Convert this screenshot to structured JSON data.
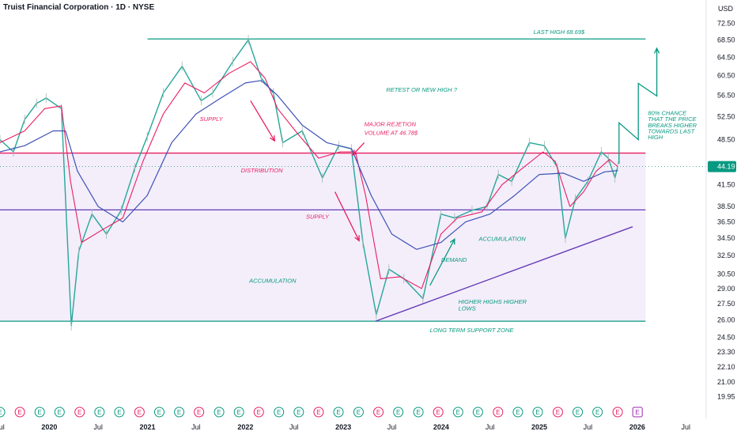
{
  "header": {
    "title": "Truist Financial Corporation · 1D · NYSE",
    "currency": "USD"
  },
  "colors": {
    "green": "#089981",
    "red": "#e91e63",
    "purple": "#673ab7",
    "blue_ma": "#3f51b5",
    "price_line": "#26a69a",
    "zone_fill": "#f3eefa",
    "price_tag": "#089981"
  },
  "chart_data": {
    "type": "line",
    "title": "Truist Financial Corporation · 1D · NYSE",
    "ylabel": "USD",
    "y_scale": "log",
    "ylim": [
      19.5,
      74
    ],
    "x_range": [
      "2019-07-01",
      "2026-09-15"
    ],
    "y_ticks": [
      72.5,
      68.5,
      64.5,
      60.5,
      56.5,
      52.5,
      48.5,
      44.19,
      41.5,
      38.5,
      36.5,
      34.5,
      32.5,
      30.5,
      29.0,
      27.5,
      26.0,
      24.5,
      23.3,
      22.1,
      21.0,
      19.95
    ],
    "x_ticks": [
      {
        "label": "Jul",
        "date": "2019-07-01"
      },
      {
        "label": "2020",
        "date": "2020-01-01"
      },
      {
        "label": "Jul",
        "date": "2020-07-01"
      },
      {
        "label": "2021",
        "date": "2021-01-01"
      },
      {
        "label": "Jul",
        "date": "2021-07-01"
      },
      {
        "label": "2022",
        "date": "2022-01-01"
      },
      {
        "label": "Jul",
        "date": "2022-07-01"
      },
      {
        "label": "2023",
        "date": "2023-01-01"
      },
      {
        "label": "Jul",
        "date": "2023-07-01"
      },
      {
        "label": "2024",
        "date": "2024-01-01"
      },
      {
        "label": "Jul",
        "date": "2024-07-01"
      },
      {
        "label": "2025",
        "date": "2025-01-01"
      },
      {
        "label": "Jul",
        "date": "2025-07-01"
      },
      {
        "label": "2026",
        "date": "2026-01-01"
      },
      {
        "label": "Jul",
        "date": "2026-07-01"
      }
    ],
    "last_price": "44.19",
    "series": [
      {
        "name": "",
        "values": [
          [
            "2019-07-01",
            48.5
          ],
          [
            "2019-08-20",
            46.5
          ],
          [
            "2019-10-01",
            52
          ],
          [
            "2019-11-15",
            55
          ],
          [
            "2019-12-20",
            56
          ],
          [
            "2020-02-15",
            54
          ],
          [
            "2020-03-23",
            25.5
          ],
          [
            "2020-04-20",
            33
          ],
          [
            "2020-06-08",
            37.5
          ],
          [
            "2020-08-01",
            35
          ],
          [
            "2020-09-25",
            38
          ],
          [
            "2020-11-15",
            44
          ],
          [
            "2020-12-31",
            49
          ],
          [
            "2021-03-01",
            57
          ],
          [
            "2021-05-10",
            62.5
          ],
          [
            "2021-07-20",
            55.5
          ],
          [
            "2021-09-01",
            57
          ],
          [
            "2021-11-15",
            63.5
          ],
          [
            "2022-01-12",
            68.5
          ],
          [
            "2022-03-01",
            60
          ],
          [
            "2022-04-15",
            57
          ],
          [
            "2022-05-20",
            48
          ],
          [
            "2022-08-01",
            50
          ],
          [
            "2022-10-15",
            42.5
          ],
          [
            "2022-12-15",
            47.5
          ],
          [
            "2023-01-31",
            47
          ],
          [
            "2023-03-15",
            34
          ],
          [
            "2023-05-04",
            26.5
          ],
          [
            "2023-06-20",
            31
          ],
          [
            "2023-08-15",
            30
          ],
          [
            "2023-10-25",
            28
          ],
          [
            "2023-12-31",
            37.5
          ],
          [
            "2024-02-20",
            37
          ],
          [
            "2024-04-25",
            38
          ],
          [
            "2024-06-20",
            38.5
          ],
          [
            "2024-08-01",
            43
          ],
          [
            "2024-09-20",
            42
          ],
          [
            "2024-11-25",
            48
          ],
          [
            "2025-01-20",
            47.5
          ],
          [
            "2025-03-10",
            44
          ],
          [
            "2025-04-08",
            34.5
          ],
          [
            "2025-05-15",
            39.5
          ],
          [
            "2025-07-01",
            42
          ],
          [
            "2025-08-20",
            46.5
          ],
          [
            "2025-09-15",
            45.5
          ],
          [
            "2025-10-10",
            42.5
          ],
          [
            "2025-10-20",
            44.19
          ]
        ]
      },
      {
        "name": "",
        "values": [
          [
            "2019-07-01",
            48
          ],
          [
            "2019-10-01",
            50
          ],
          [
            "2019-12-15",
            54
          ],
          [
            "2020-02-15",
            54.5
          ],
          [
            "2020-03-20",
            42
          ],
          [
            "2020-04-30",
            34
          ],
          [
            "2020-07-15",
            35.5
          ],
          [
            "2020-10-01",
            37
          ],
          [
            "2020-12-15",
            45
          ],
          [
            "2021-03-01",
            53
          ],
          [
            "2021-05-20",
            59
          ],
          [
            "2021-08-01",
            57
          ],
          [
            "2021-11-01",
            61
          ],
          [
            "2022-01-20",
            63.5
          ],
          [
            "2022-03-15",
            60
          ],
          [
            "2022-05-01",
            54
          ],
          [
            "2022-07-15",
            49.5
          ],
          [
            "2022-10-01",
            45.5
          ],
          [
            "2022-12-20",
            46.5
          ],
          [
            "2023-02-15",
            46.5
          ],
          [
            "2023-03-25",
            40
          ],
          [
            "2023-05-20",
            30
          ],
          [
            "2023-08-01",
            30.2
          ],
          [
            "2023-10-20",
            29
          ],
          [
            "2023-12-31",
            35
          ],
          [
            "2024-03-01",
            37
          ],
          [
            "2024-06-01",
            37.8
          ],
          [
            "2024-08-15",
            41.5
          ],
          [
            "2024-11-01",
            44
          ],
          [
            "2025-01-15",
            46.5
          ],
          [
            "2025-03-01",
            45
          ],
          [
            "2025-04-25",
            38.5
          ],
          [
            "2025-06-15",
            40.5
          ],
          [
            "2025-08-01",
            43.5
          ],
          [
            "2025-09-20",
            45.3
          ],
          [
            "2025-10-20",
            44.2
          ]
        ]
      },
      {
        "name": "",
        "values": [
          [
            "2019-07-01",
            46.5
          ],
          [
            "2019-10-01",
            47.5
          ],
          [
            "2020-01-15",
            50
          ],
          [
            "2020-03-01",
            50
          ],
          [
            "2020-04-15",
            43.5
          ],
          [
            "2020-07-01",
            38.5
          ],
          [
            "2020-10-01",
            36.5
          ],
          [
            "2020-12-31",
            40
          ],
          [
            "2021-04-01",
            48
          ],
          [
            "2021-07-01",
            53
          ],
          [
            "2021-10-01",
            56
          ],
          [
            "2022-01-01",
            59
          ],
          [
            "2022-03-01",
            59.5
          ],
          [
            "2022-05-01",
            56.5
          ],
          [
            "2022-08-01",
            51
          ],
          [
            "2022-11-01",
            48
          ],
          [
            "2023-02-01",
            47
          ],
          [
            "2023-04-15",
            40
          ],
          [
            "2023-07-01",
            35
          ],
          [
            "2023-10-01",
            33.2
          ],
          [
            "2023-12-31",
            34
          ],
          [
            "2024-04-01",
            36.5
          ],
          [
            "2024-07-01",
            37.5
          ],
          [
            "2024-10-01",
            40
          ],
          [
            "2025-01-01",
            43
          ],
          [
            "2025-04-01",
            43.2
          ],
          [
            "2025-06-15",
            42
          ],
          [
            "2025-09-01",
            43.4
          ],
          [
            "2025-10-20",
            43.6
          ]
        ]
      }
    ],
    "levels": [
      {
        "price": 68.69,
        "from": "2021-01-01",
        "to": "2026-02-01",
        "color": "green"
      },
      {
        "price": 46.3,
        "from": "2019-07-01",
        "to": "2026-02-01",
        "color": "red"
      },
      {
        "price": 38.05,
        "from": "2019-07-01",
        "to": "2026-02-01",
        "color": "purple"
      },
      {
        "price": 25.9,
        "from": "2019-07-01",
        "to": "2026-02-01",
        "color": "green"
      }
    ],
    "trendline": {
      "from": [
        "2023-05-01",
        25.9
      ],
      "to": [
        "2025-12-15",
        35.9
      ]
    },
    "annotations": [
      {
        "text": "LAST HIGH 68.69$",
        "date": "2024-12-10",
        "price": 69.9,
        "color": "green"
      },
      {
        "text": "RETEST OR NEW HIGH ?",
        "date": "2023-06-10",
        "price": 57.2,
        "color": "green"
      },
      {
        "text": "SUPPLY",
        "date": "2021-07-15",
        "price": 51.7,
        "color": "red"
      },
      {
        "text": "MAJOR REJETION",
        "date": "2023-03-20",
        "price": 50.8,
        "color": "red"
      },
      {
        "text": "VOLUME AT 46.78$",
        "date": "2023-03-20",
        "price": 49.3,
        "color": "red"
      },
      {
        "text": "DISTRIBUTION",
        "date": "2021-12-15",
        "price": 43.3,
        "color": "red"
      },
      {
        "text": "SUPPLY",
        "date": "2022-08-15",
        "price": 36.9,
        "color": "red"
      },
      {
        "text": "ACCUMULATION",
        "date": "2024-05-20",
        "price": 34.2,
        "color": "green"
      },
      {
        "text": "DEMAND",
        "date": "2024-01-01",
        "price": 31.8,
        "color": "green"
      },
      {
        "text": "ACCUMULATION",
        "date": "2022-01-15",
        "price": 29.6,
        "color": "green"
      },
      {
        "text": "HIGHER HIGHS HIGHER",
        "date": "2024-03-05",
        "price": 27.5,
        "color": "green"
      },
      {
        "text": "LOWS",
        "date": "2024-03-05",
        "price": 26.9,
        "color": "green"
      },
      {
        "text": "LONG TERM SUPPORT ZONE",
        "date": "2023-11-20",
        "price": 24.95,
        "color": "green"
      },
      {
        "text": "80% CHANCE",
        "date": "2026-02-10",
        "price": 52.8,
        "color": "green"
      },
      {
        "text": "THAT THE PRICE",
        "date": "2026-02-10",
        "price": 51.7,
        "color": "green"
      },
      {
        "text": "BREAKS HIGHER",
        "date": "2026-02-10",
        "price": 50.6,
        "color": "green"
      },
      {
        "text": "TOWARDS LAST",
        "date": "2026-02-10",
        "price": 49.6,
        "color": "green"
      },
      {
        "text": "HIGH",
        "date": "2026-02-10",
        "price": 48.6,
        "color": "green"
      }
    ],
    "events": [
      "E",
      "E",
      "E",
      "E",
      "E",
      "E",
      "E",
      "E",
      "E",
      "E",
      "E",
      "E",
      "E",
      "E",
      "E",
      "E",
      "E",
      "E",
      "E",
      "E",
      "E",
      "E",
      "E",
      "E",
      "E",
      "E",
      "E",
      "E",
      "E",
      "E",
      "E",
      "E"
    ]
  }
}
